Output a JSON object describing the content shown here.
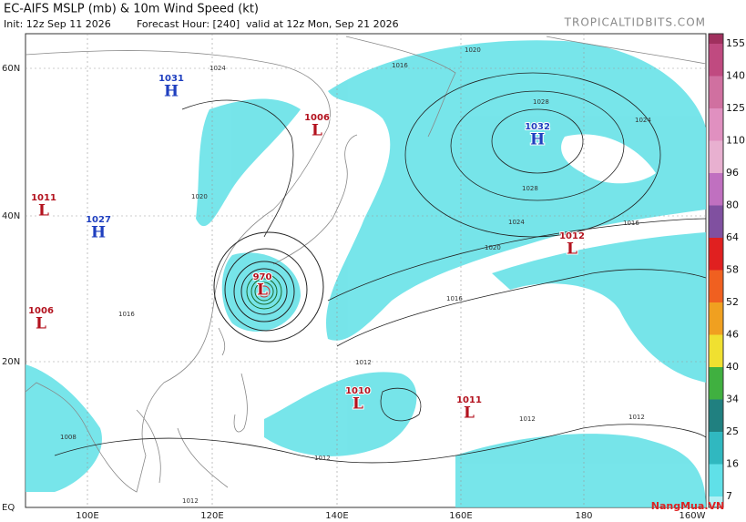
{
  "header": {
    "title": "EC-AIFS MSLP (mb) & 10m Wind Speed (kt)",
    "init": "Init: 12z Sep 11 2026",
    "forecast_hour": "Forecast Hour: [240]",
    "valid": "valid at 12z Mon, Sep 21 2026",
    "source": "TROPICALTIDBITS.COM"
  },
  "lat_labels": [
    "60N",
    "40N",
    "20N",
    "EQ"
  ],
  "lon_labels": [
    "100E",
    "120E",
    "140E",
    "160E",
    "180",
    "160W"
  ],
  "colorbar": [
    155,
    140,
    125,
    110,
    96,
    80,
    64,
    58,
    52,
    46,
    40,
    34,
    25,
    16,
    7
  ],
  "centers": [
    {
      "kind": "H",
      "pressure": "1031"
    },
    {
      "kind": "H",
      "pressure": "1027"
    },
    {
      "kind": "H",
      "pressure": "1032"
    },
    {
      "kind": "L",
      "pressure": "1011"
    },
    {
      "kind": "L",
      "pressure": "1006"
    },
    {
      "kind": "L",
      "pressure": "1006"
    },
    {
      "kind": "L",
      "pressure": "970"
    },
    {
      "kind": "L",
      "pressure": "1012"
    },
    {
      "kind": "L",
      "pressure": "1010"
    },
    {
      "kind": "L",
      "pressure": "1011"
    }
  ],
  "contour_labels": [
    "1024",
    "1020",
    "1016",
    "1028",
    "1024",
    "1028",
    "1024",
    "1020",
    "1016",
    "1016",
    "1012",
    "1012",
    "1012",
    "1012",
    "1008",
    "1020",
    "1016",
    "1012"
  ],
  "watermark": "NangMua.VN"
}
